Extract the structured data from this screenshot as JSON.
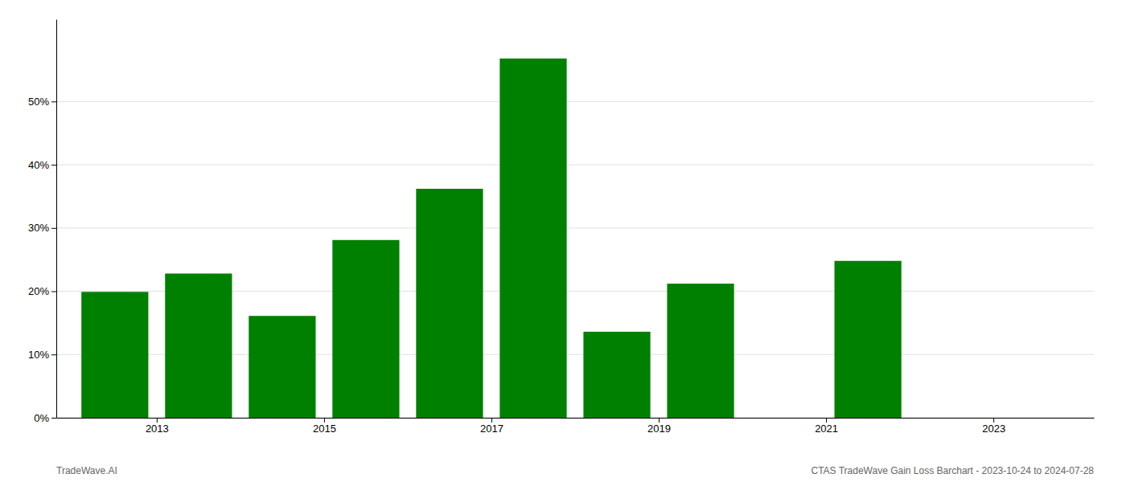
{
  "chart_data": {
    "type": "bar",
    "x": [
      2012.5,
      2013.5,
      2014.5,
      2015.5,
      2016.5,
      2017.5,
      2018.5,
      2019.5,
      2020.5,
      2021.5,
      2022.5
    ],
    "values": [
      0.199,
      0.228,
      0.161,
      0.281,
      0.362,
      0.568,
      0.136,
      0.212,
      0.0,
      0.248,
      0.0
    ],
    "color": "#008000",
    "xlim": [
      2011.8,
      2024.2
    ],
    "xticks": [
      2013,
      2015,
      2017,
      2019,
      2021,
      2023
    ],
    "ylim": [
      0,
      0.63
    ],
    "yticks": [
      {
        "value": 0.0,
        "label": "0%"
      },
      {
        "value": 0.1,
        "label": "10%"
      },
      {
        "value": 0.2,
        "label": "20%"
      },
      {
        "value": 0.3,
        "label": "30%"
      },
      {
        "value": 0.4,
        "label": "40%"
      },
      {
        "value": 0.5,
        "label": "50%"
      }
    ],
    "grid": true,
    "annotations": [
      "TradeWave.AI",
      "CTAS TradeWave Gain Loss Barchart - 2023-10-24 to 2024-07-28"
    ]
  }
}
